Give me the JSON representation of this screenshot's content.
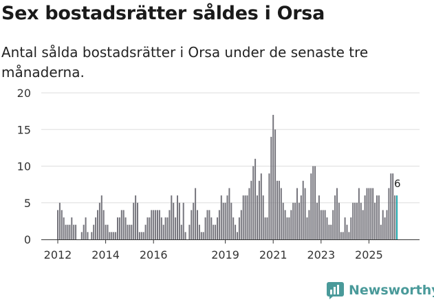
{
  "title": "Sex bostadsrätter såldes i Orsa",
  "subtitle": "Antal sålda bostadsrätter i Orsa under de senaste tre månaderna.",
  "brand": {
    "name": "Newsworthy",
    "icon": "newsworthy-logo-icon",
    "color": "#4a9a9a"
  },
  "colors": {
    "bar": "#75747c",
    "highlight": "#1aa3a8",
    "grid": "#dddddd",
    "text": "#333333"
  },
  "chart_data": {
    "type": "bar",
    "title": "Sex bostadsrätter såldes i Orsa",
    "xlabel": "",
    "ylabel": "",
    "ylim": [
      0,
      20
    ],
    "yticks": [
      "0",
      "5",
      "10",
      "15",
      "20"
    ],
    "xticks": [
      {
        "label": "2012",
        "index": 0
      },
      {
        "label": "2014",
        "index": 24
      },
      {
        "label": "2016",
        "index": 48
      },
      {
        "label": "2019",
        "index": 84
      },
      {
        "label": "2021",
        "index": 108
      },
      {
        "label": "2023",
        "index": 132
      },
      {
        "label": "2025",
        "index": 156
      }
    ],
    "start": "2012-01",
    "frequency": "monthly",
    "values": [
      4,
      5,
      4,
      3,
      2,
      2,
      2,
      3,
      2,
      2,
      0,
      0,
      1,
      2,
      3,
      1,
      0,
      1,
      2,
      3,
      4,
      5,
      6,
      4,
      2,
      2,
      1,
      1,
      1,
      1,
      3,
      3,
      4,
      4,
      3,
      2,
      2,
      2,
      5,
      6,
      5,
      1,
      1,
      1,
      2,
      3,
      3,
      4,
      4,
      4,
      4,
      4,
      3,
      2,
      3,
      3,
      4,
      6,
      5,
      3,
      6,
      5,
      2,
      5,
      1,
      0,
      2,
      4,
      5,
      7,
      4,
      2,
      1,
      1,
      3,
      4,
      4,
      3,
      2,
      2,
      3,
      4,
      6,
      5,
      5,
      6,
      7,
      5,
      3,
      2,
      1,
      3,
      4,
      6,
      6,
      6,
      7,
      8,
      10,
      11,
      6,
      8,
      9,
      6,
      3,
      3,
      9,
      14,
      17,
      15,
      8,
      8,
      7,
      5,
      4,
      3,
      3,
      4,
      5,
      5,
      7,
      5,
      6,
      8,
      7,
      3,
      4,
      9,
      10,
      10,
      5,
      6,
      4,
      4,
      4,
      3,
      2,
      2,
      4,
      6,
      7,
      5,
      1,
      1,
      3,
      2,
      1,
      3,
      5,
      5,
      5,
      7,
      5,
      4,
      6,
      7,
      7,
      7,
      7,
      5,
      6,
      6,
      2,
      4,
      3,
      4,
      7,
      9,
      9,
      6,
      6
    ],
    "highlight_last": 1,
    "annotation": {
      "index": 170,
      "value": 6,
      "text": "6"
    }
  }
}
